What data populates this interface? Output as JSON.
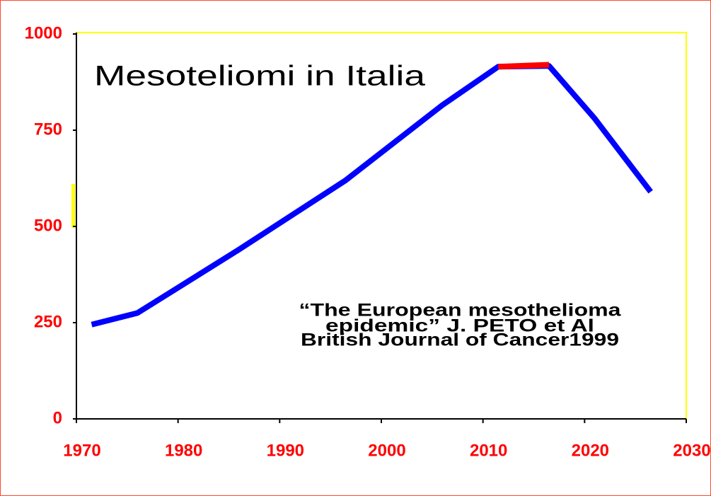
{
  "chart_data": {
    "type": "line",
    "title": "Mesoteliomi in Italia",
    "annotation": [
      "“The European mesothelioma",
      "epidemic” J. PETO et Al",
      "British Journal of Cancer1999"
    ],
    "series": [
      {
        "color": "#0000ff",
        "x": [
          1971.5,
          1976,
          1986,
          1996.5,
          2006,
          2011.5,
          2016.5,
          2021,
          2026.5
        ],
        "values": [
          245,
          275,
          440,
          620,
          815,
          915,
          917,
          780,
          590
        ]
      },
      {
        "color": "#ff0000",
        "x": [
          2011.5,
          2016.5
        ],
        "values": [
          915,
          920
        ]
      }
    ],
    "xlim": [
      1970,
      2030
    ],
    "xticks": [
      1970,
      1980,
      1990,
      2000,
      2010,
      2020,
      2030
    ],
    "ylim": [
      0,
      1000
    ],
    "yticks": [
      0,
      250,
      500,
      750,
      1000
    ],
    "tick_color": "#ff0000",
    "frame_color": "#ffff00"
  }
}
